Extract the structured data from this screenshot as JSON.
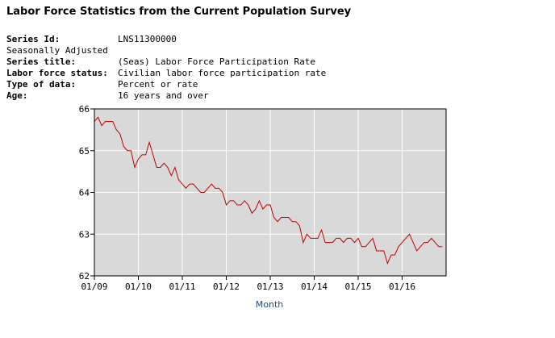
{
  "page": {
    "title": "Labor Force Statistics from the Current Population Survey"
  },
  "meta": {
    "series_id_label": "Series Id:",
    "series_id": "LNS11300000",
    "adjustment": "Seasonally Adjusted",
    "series_title_label": "Series title:",
    "series_title": "(Seas) Labor Force Participation Rate",
    "status_label": "Labor force status:",
    "status": "Civilian labor force participation rate",
    "type_label": "Type of data:",
    "type": "Percent or rate",
    "age_label": "Age:",
    "age": "16 years and over"
  },
  "colors": {
    "line": "#c00000",
    "plot_bg": "#d9d9d9",
    "grid": "#ffffff",
    "axis_title": "#1f4e79"
  },
  "chart_data": {
    "type": "line",
    "title": "",
    "xlabel": "Month",
    "ylabel": "",
    "ylim": [
      62,
      66
    ],
    "yticks": [
      62,
      63,
      64,
      65,
      66
    ],
    "ytick_labels": [
      "62",
      "63",
      "64",
      "65",
      "66"
    ],
    "xlim": [
      0,
      96
    ],
    "xticks": [
      0,
      12,
      24,
      36,
      48,
      60,
      72,
      84
    ],
    "xtick_labels": [
      "01/09",
      "01/10",
      "01/11",
      "01/12",
      "01/13",
      "01/14",
      "01/15",
      "01/16"
    ],
    "grid": true,
    "series": [
      {
        "name": "Labor Force Participation Rate",
        "start": "01/09",
        "values": [
          65.7,
          65.8,
          65.6,
          65.7,
          65.7,
          65.7,
          65.5,
          65.4,
          65.1,
          65.0,
          65.0,
          64.6,
          64.8,
          64.9,
          64.9,
          65.2,
          64.9,
          64.6,
          64.6,
          64.7,
          64.6,
          64.4,
          64.6,
          64.3,
          64.2,
          64.1,
          64.2,
          64.2,
          64.1,
          64.0,
          64.0,
          64.1,
          64.2,
          64.1,
          64.1,
          64.0,
          63.7,
          63.8,
          63.8,
          63.7,
          63.7,
          63.8,
          63.7,
          63.5,
          63.6,
          63.8,
          63.6,
          63.7,
          63.7,
          63.4,
          63.3,
          63.4,
          63.4,
          63.4,
          63.3,
          63.3,
          63.2,
          62.8,
          63.0,
          62.9,
          62.9,
          62.9,
          63.1,
          62.8,
          62.8,
          62.8,
          62.9,
          62.9,
          62.8,
          62.9,
          62.9,
          62.8,
          62.9,
          62.7,
          62.7,
          62.8,
          62.9,
          62.6,
          62.6,
          62.6,
          62.3,
          62.5,
          62.5,
          62.7,
          62.8,
          62.9,
          63.0,
          62.8,
          62.6,
          62.7,
          62.8,
          62.8,
          62.9,
          62.8,
          62.7,
          62.7
        ]
      }
    ]
  }
}
